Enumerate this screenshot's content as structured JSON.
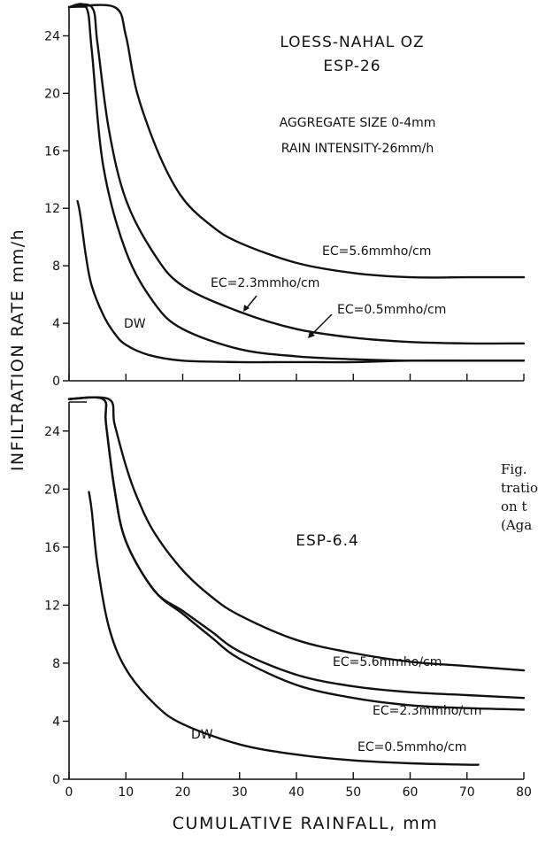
{
  "figure": {
    "ylabel": "INFILTRATION RATE mm/h",
    "xlabel": "CUMULATIVE RAINFALL, mm",
    "caption_fragments": [
      "Fig.",
      "tratio",
      "on t",
      "(Aga"
    ]
  },
  "chart_data": [
    {
      "type": "line",
      "title": "LOESS-NAHAL OZ",
      "subtitle": "ESP-26",
      "annotations": [
        "AGGREGATE SIZE 0-4mm",
        "RAIN INTENSITY-26mm/h"
      ],
      "xlim": [
        0,
        80
      ],
      "ylim": [
        0,
        26
      ],
      "x_ticks": [
        0,
        10,
        20,
        30,
        40,
        50,
        60,
        70,
        80
      ],
      "x_ticklabels_shown": false,
      "y_ticks": [
        0,
        4,
        8,
        12,
        16,
        20,
        24
      ],
      "series": [
        {
          "name": "EC=5.6mmho/cm",
          "x": [
            0,
            8,
            10,
            12,
            16,
            20,
            25,
            30,
            40,
            50,
            60,
            70,
            80
          ],
          "y": [
            26,
            26,
            24,
            20,
            15.6,
            12.7,
            10.8,
            9.6,
            8.2,
            7.5,
            7.2,
            7.2,
            7.2
          ]
        },
        {
          "name": "EC=2.3mmho/cm",
          "x": [
            0,
            4,
            5,
            7,
            10,
            15,
            20,
            30,
            40,
            50,
            60,
            70,
            80
          ],
          "y": [
            26,
            26,
            23.5,
            17.5,
            12.6,
            8.8,
            6.6,
            4.8,
            3.6,
            3.0,
            2.7,
            2.6,
            2.6
          ]
        },
        {
          "name": "EC=0.5mmho/cm",
          "x": [
            0,
            3,
            4,
            6,
            10,
            15,
            20,
            30,
            40,
            50,
            60,
            70,
            80
          ],
          "y": [
            26,
            26,
            23,
            15,
            9.0,
            5.4,
            3.6,
            2.2,
            1.7,
            1.5,
            1.4,
            1.4,
            1.4
          ]
        },
        {
          "name": "DW",
          "x": [
            1.5,
            2,
            3,
            4,
            6,
            8,
            10,
            14,
            20,
            30,
            40,
            50,
            60,
            70,
            80
          ],
          "y": [
            12.5,
            11.5,
            8.6,
            6.6,
            4.6,
            3.3,
            2.5,
            1.8,
            1.4,
            1.3,
            1.3,
            1.3,
            1.4,
            1.4,
            1.4
          ]
        }
      ]
    },
    {
      "type": "line",
      "title": "ESP-6.4",
      "xlim": [
        0,
        80
      ],
      "ylim": [
        0,
        26
      ],
      "x_ticks": [
        0,
        10,
        20,
        30,
        40,
        50,
        60,
        70,
        80
      ],
      "y_ticks": [
        0,
        4,
        8,
        12,
        16,
        20,
        24
      ],
      "series": [
        {
          "name": "EC=5.6mmho/cm",
          "x": [
            0,
            7,
            8,
            10,
            12,
            15,
            20,
            25,
            30,
            40,
            50,
            60,
            70,
            80
          ],
          "y": [
            26.2,
            26.2,
            24.5,
            21.6,
            19.4,
            17.0,
            14.4,
            12.6,
            11.3,
            9.6,
            8.7,
            8.1,
            7.8,
            7.5
          ]
        },
        {
          "name": "EC=2.3mmho/cm",
          "x": [
            0,
            6,
            6.5,
            8,
            10,
            15,
            20,
            25,
            30,
            40,
            50,
            60,
            70,
            80
          ],
          "y": [
            26.2,
            26.2,
            24.5,
            20.0,
            16.4,
            13.0,
            11.6,
            10.2,
            8.8,
            7.2,
            6.4,
            6.0,
            5.8,
            5.6
          ]
        },
        {
          "name": "EC=0.5mmho/cm",
          "x": [
            0,
            6,
            6.5,
            8,
            10,
            15,
            20,
            25,
            30,
            40,
            50,
            60,
            70,
            80
          ],
          "y": [
            26.2,
            26.2,
            24.5,
            20.0,
            16.4,
            13.0,
            11.4,
            9.8,
            8.3,
            6.5,
            5.6,
            5.1,
            4.9,
            4.8
          ]
        },
        {
          "name": "DW",
          "x": [
            3.5,
            4,
            5,
            7,
            10,
            15,
            20,
            30,
            40,
            50,
            60,
            70,
            72
          ],
          "y": [
            19.8,
            18.5,
            14.8,
            10.5,
            7.6,
            5.2,
            3.8,
            2.4,
            1.7,
            1.3,
            1.1,
            1.0,
            1.0
          ]
        }
      ]
    }
  ]
}
